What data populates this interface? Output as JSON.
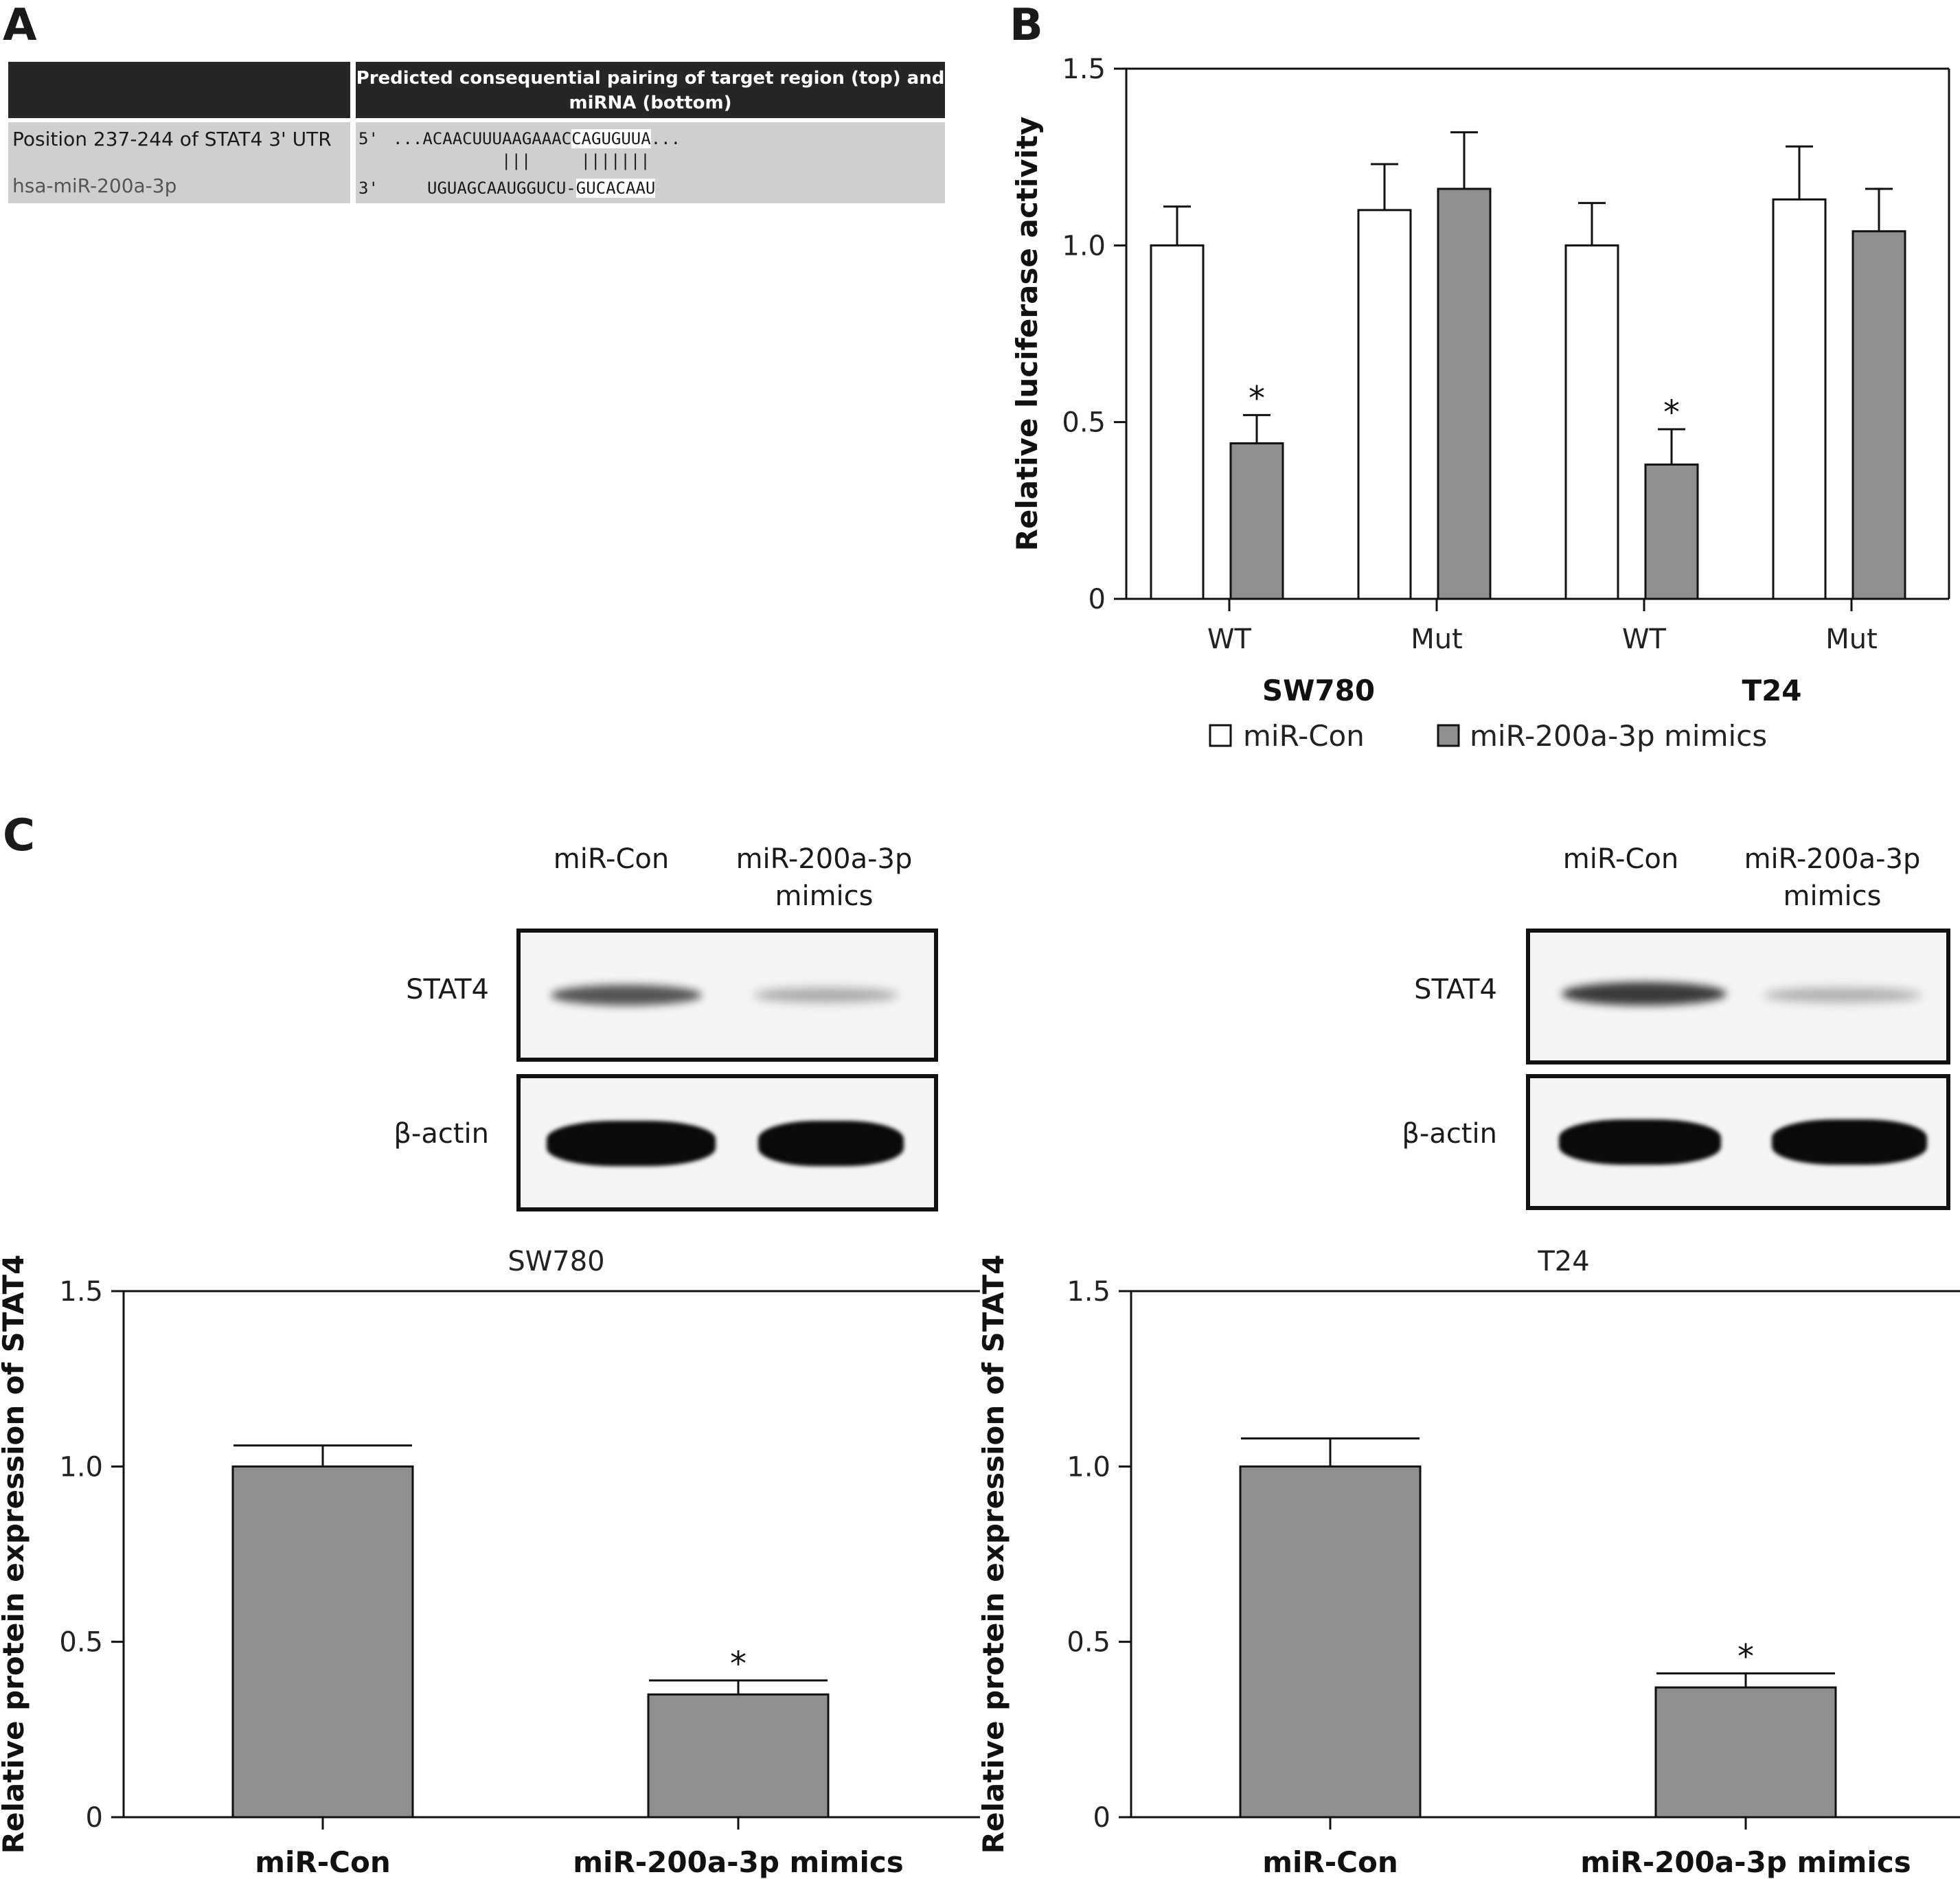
{
  "panels": {
    "a": "A",
    "b": "B",
    "c": "C"
  },
  "table_a": {
    "header": "Predicted consequential pairing of target region (top) and miRNA (bottom)",
    "row1_label": "Position 237-244 of STAT4 3' UTR",
    "row2_label": "hsa-miR-200a-3p",
    "prime5": "5'",
    "prime3": "3'",
    "top_seq_left": "...ACAACUUUAAGAAAC",
    "top_seq_mid": "CAGUGUUA",
    "top_seq_right": "...",
    "pair_marks": "|||     |||||||",
    "bottom_seq_left": "UGUAGCAAUGGUCU-",
    "bottom_seq_mid": "GUCACAAU"
  },
  "blots": {
    "left": {
      "lane1": "miR-Con",
      "lane2": "miR-200a-3p mimics",
      "band1": "STAT4",
      "band2": "β-actin"
    },
    "right": {
      "lane1": "miR-Con",
      "lane2": "miR-200a-3p mimics",
      "band1": "STAT4",
      "band2": "β-actin"
    }
  },
  "chart_data": [
    {
      "id": "b",
      "type": "bar",
      "ylabel": "Relative luciferase activity",
      "ylim": [
        0,
        1.5
      ],
      "yticks": [
        "0",
        "0.5",
        "1.0",
        "1.5"
      ],
      "groups": [
        {
          "label": "WT",
          "cell": "SW780",
          "values": [
            1.0,
            0.44
          ],
          "errors": [
            0.11,
            0.08
          ],
          "sig": [
            "",
            "*"
          ]
        },
        {
          "label": "Mut",
          "cell": "",
          "values": [
            1.1,
            1.16
          ],
          "errors": [
            0.13,
            0.16
          ],
          "sig": [
            "",
            ""
          ]
        },
        {
          "label": "WT",
          "cell": "",
          "values": [
            1.0,
            0.38
          ],
          "errors": [
            0.12,
            0.1
          ],
          "sig": [
            "",
            "*"
          ]
        },
        {
          "label": "Mut",
          "cell": "T24",
          "values": [
            1.13,
            1.04
          ],
          "errors": [
            0.15,
            0.12
          ],
          "sig": [
            "",
            ""
          ]
        }
      ],
      "cell_labels": [
        "SW780",
        "T24"
      ],
      "series": [
        {
          "name": "miR-Con",
          "color": "#ffffff"
        },
        {
          "name": "miR-200a-3p mimics",
          "color": "#8f8f8f"
        }
      ]
    },
    {
      "id": "c-left",
      "type": "bar",
      "title": "SW780",
      "ylabel": "Relative protein expression of STAT4",
      "ylim": [
        0,
        1.5
      ],
      "yticks": [
        "0",
        "0.5",
        "1.0",
        "1.5"
      ],
      "categories": [
        "miR-Con",
        "miR-200a-3p mimics"
      ],
      "values": [
        1.0,
        0.35
      ],
      "errors": [
        0.06,
        0.04
      ],
      "sig": [
        "",
        "*"
      ],
      "color": "#8f8f8f"
    },
    {
      "id": "c-right",
      "type": "bar",
      "title": "T24",
      "ylabel": "Relative protein expression of STAT4",
      "ylim": [
        0,
        1.5
      ],
      "yticks": [
        "0",
        "0.5",
        "1.0",
        "1.5"
      ],
      "categories": [
        "miR-Con",
        "miR-200a-3p mimics"
      ],
      "values": [
        1.0,
        0.37
      ],
      "errors": [
        0.08,
        0.04
      ],
      "sig": [
        "",
        "*"
      ],
      "color": "#8f8f8f"
    }
  ]
}
